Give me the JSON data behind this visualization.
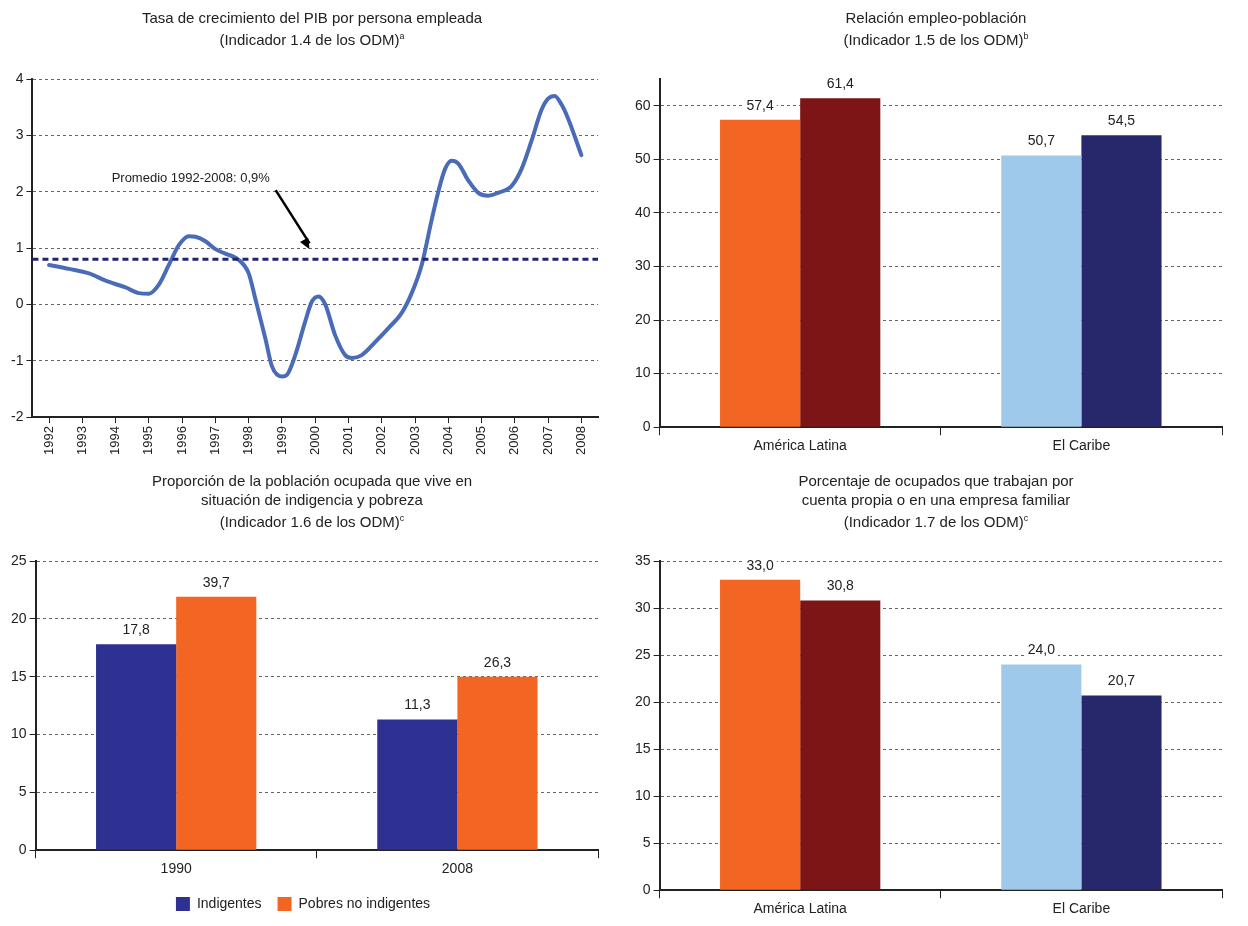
{
  "chart_data": [
    {
      "type": "line",
      "title": "Tasa de crecimiento del PIB por persona empleada\n(Indicador 1.4 de los ODM)$^{a}$",
      "xlim": [
        1991.5,
        2008.5
      ],
      "xticks": [
        1992,
        1993,
        1994,
        1995,
        1996,
        1997,
        1998,
        1999,
        2000,
        2001,
        2002,
        2003,
        2004,
        2005,
        2006,
        2007,
        2008
      ],
      "ylim": [
        -2,
        4
      ],
      "yticks": [
        -2,
        -1,
        0,
        1,
        2,
        3,
        4
      ],
      "grid": "y",
      "legend": false,
      "marker": "none",
      "line_style": "solid",
      "series": [
        {
          "color": "#4a6cb8",
          "x": [
            1992,
            1992.6,
            1993.2,
            1993.7,
            1994.3,
            1994.7,
            1995.0,
            1995.3,
            1995.6,
            1995.9,
            1996.2,
            1996.4,
            1996.7,
            1997.0,
            1997.3,
            1997.7,
            1998.0,
            1998.2,
            1998.5,
            1998.7,
            1999.0,
            1999.15,
            1999.4,
            1999.7,
            1999.9,
            2000.1,
            2000.3,
            2000.6,
            2000.9,
            2001.1,
            2001.4,
            2001.8,
            2002.2,
            2002.6,
            2002.9,
            2003.2,
            2003.5,
            2003.7,
            2003.9,
            2004.1,
            2004.3,
            2004.6,
            2004.9,
            2005.2,
            2005.5,
            2005.9,
            2006.2,
            2006.5,
            2006.8,
            2007.0,
            2007.2,
            2007.4,
            2007.6,
            2008.0
          ],
          "values": [
            0.7,
            0.63,
            0.55,
            0.42,
            0.3,
            0.2,
            0.19,
            0.35,
            0.7,
            1.05,
            1.21,
            1.2,
            1.12,
            0.98,
            0.9,
            0.79,
            0.55,
            0.1,
            -0.6,
            -1.1,
            -1.28,
            -1.25,
            -0.9,
            -0.3,
            0.05,
            0.14,
            0.0,
            -0.55,
            -0.9,
            -0.95,
            -0.9,
            -0.67,
            -0.42,
            -0.15,
            0.2,
            0.7,
            1.5,
            2.0,
            2.4,
            2.55,
            2.5,
            2.2,
            1.98,
            1.93,
            1.98,
            2.1,
            2.4,
            2.9,
            3.45,
            3.65,
            3.7,
            3.55,
            3.3,
            2.65
          ]
        }
      ],
      "annotations": [
        "Promedio 1992-2008: 0,9%"
      ],
      "ref_lines": [
        {
          "axis": "y",
          "value": 0.8,
          "color": "#1f2370",
          "line_style": "dashed"
        }
      ]
    },
    {
      "type": "bar",
      "title": "Relación empleo-población\n(Indicador 1.5 de los ODM)$^{b}$",
      "categories": [
        "América Latina",
        "El Caribe"
      ],
      "ylim": [
        0,
        65
      ],
      "yticks": [
        0,
        10,
        20,
        30,
        40,
        50,
        60
      ],
      "grid": "y",
      "legend": false,
      "series": [
        {
          "colors": [
            "#f26522",
            "#9fc9ea"
          ],
          "values": [
            57.4,
            50.7
          ],
          "value_labels": [
            "57,4",
            "50,7"
          ]
        },
        {
          "colors": [
            "#7d1416",
            "#27276b"
          ],
          "values": [
            61.4,
            54.5
          ],
          "value_labels": [
            "61,4",
            "54,5"
          ]
        }
      ]
    },
    {
      "type": "bar",
      "title": "Proporción de la población ocupada que vive en\nsituación de indigencia y pobreza\n(Indicador 1.6 de los ODM)$^{c}$",
      "categories": [
        "1990",
        "2008"
      ],
      "ylim": [
        0,
        25
      ],
      "yticks": [
        0,
        5,
        10,
        15,
        20,
        25
      ],
      "grid": "y",
      "legend": "bottom",
      "series": [
        {
          "name": "Indigentes",
          "color": "#2e3192",
          "values": [
            17.8,
            11.3
          ],
          "value_labels": [
            "17,8",
            "11,3"
          ]
        },
        {
          "name": "Pobres no indigentes",
          "color": "#f26522",
          "values": [
            21.9,
            15.0
          ]
        }
      ],
      "annotations": [
        {
          "text": "39,7",
          "x": "1990",
          "y": 21.9
        },
        {
          "text": "26,3",
          "x": "2008",
          "y": 15.0
        }
      ]
    },
    {
      "type": "bar",
      "title": "Porcentaje de ocupados que trabajan por\ncuenta propia o en una empresa familiar\n(Indicador 1.7 de los ODM)$^{c}$",
      "categories": [
        "América Latina",
        "El Caribe"
      ],
      "ylim": [
        0,
        35
      ],
      "yticks": [
        0,
        5,
        10,
        15,
        20,
        25,
        30,
        35
      ],
      "grid": "y",
      "legend": false,
      "series": [
        {
          "colors": [
            "#f26522",
            "#9fc9ea"
          ],
          "values": [
            33.0,
            24.0
          ],
          "value_labels": [
            "33,0",
            "24,0"
          ]
        },
        {
          "colors": [
            "#7d1416",
            "#27276b"
          ],
          "values": [
            30.8,
            20.7
          ],
          "value_labels": [
            "30,8",
            "20,7"
          ]
        }
      ]
    }
  ]
}
